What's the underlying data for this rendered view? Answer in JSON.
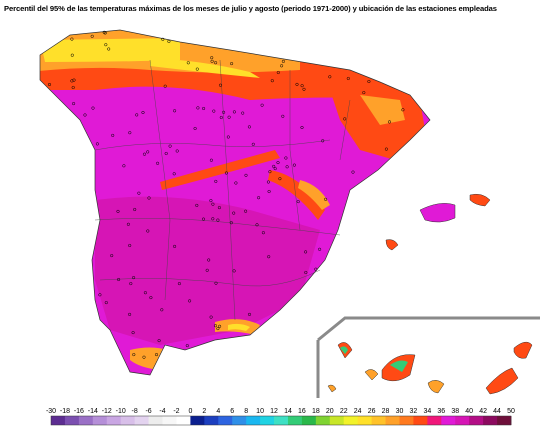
{
  "title": "Percentil del 95% de las temperaturas máximas de los meses de julio y agosto (periodo 1971-2000) y ubicación de las estaciones empleadas",
  "legend": {
    "ticks": [
      "-30",
      "-18",
      "-16",
      "-14",
      "-12",
      "-10",
      "-8",
      "-6",
      "-4",
      "-2",
      "0",
      "2",
      "4",
      "6",
      "8",
      "10",
      "12",
      "14",
      "16",
      "18",
      "20",
      "22",
      "24",
      "26",
      "28",
      "30",
      "32",
      "34",
      "36",
      "38",
      "40",
      "42",
      "44",
      "50"
    ],
    "colors": [
      "#5c2d91",
      "#7b4fb0",
      "#9a70c6",
      "#b58fd8",
      "#c9a6e3",
      "#d8bfe9",
      "#e3d3ef",
      "#ededed",
      "#f7f7f7",
      "#ffffff",
      "#0b1f8f",
      "#1c3fbf",
      "#2d64e0",
      "#2f8fe8",
      "#1ab7f0",
      "#20d3e3",
      "#3ee0c4",
      "#33cc77",
      "#2ab84a",
      "#7fd332",
      "#c8e628",
      "#f2f22a",
      "#ffe02a",
      "#ffc22a",
      "#ffa12a",
      "#ff7a1f",
      "#ff4a14",
      "#f0177a",
      "#e01ad6",
      "#d615b5",
      "#b30e86",
      "#8c0a5f",
      "#6e0f3a"
    ]
  },
  "colors": {
    "land_base": "#e01ad6",
    "hot_core": "#d615b5",
    "warm_edge": "#ff4a14",
    "mild": "#ffa12a",
    "cool": "#ffe02a",
    "station": "#000000"
  }
}
